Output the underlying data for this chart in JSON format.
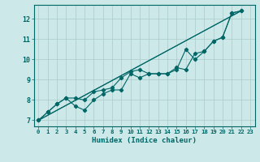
{
  "xlabel": "Humidex (Indice chaleur)",
  "background_color": "#cce8e8",
  "grid_color": "#aacccc",
  "line_color": "#006666",
  "xlim": [
    -0.5,
    23.5
  ],
  "ylim": [
    6.7,
    12.7
  ],
  "yticks": [
    7,
    8,
    9,
    10,
    11,
    12
  ],
  "xticks": [
    0,
    1,
    2,
    3,
    4,
    5,
    6,
    7,
    8,
    9,
    10,
    11,
    12,
    13,
    14,
    15,
    16,
    17,
    18,
    19,
    20,
    21,
    22,
    23
  ],
  "straight1": {
    "x": [
      0,
      22
    ],
    "y": [
      7.0,
      12.4
    ]
  },
  "straight2": {
    "x": [
      0,
      22
    ],
    "y": [
      7.0,
      12.4
    ]
  },
  "line1_x": [
    0,
    1,
    2,
    3,
    4,
    5,
    6,
    7,
    8,
    9,
    10,
    11,
    12,
    13,
    14,
    15,
    16,
    17,
    18,
    19,
    20,
    21,
    22
  ],
  "line1_y": [
    7.0,
    7.4,
    7.8,
    8.1,
    7.7,
    7.5,
    8.0,
    8.3,
    8.5,
    8.5,
    9.3,
    9.1,
    9.3,
    9.3,
    9.3,
    9.5,
    10.5,
    10.0,
    10.4,
    10.9,
    11.1,
    12.3,
    12.4
  ],
  "line2_x": [
    0,
    1,
    2,
    3,
    4,
    5,
    6,
    7,
    8,
    9,
    10,
    11,
    12,
    13,
    14,
    15,
    16,
    17,
    18,
    19,
    20,
    21,
    22
  ],
  "line2_y": [
    7.0,
    7.4,
    7.8,
    8.1,
    8.1,
    8.0,
    8.4,
    8.5,
    8.6,
    9.1,
    9.4,
    9.5,
    9.3,
    9.3,
    9.3,
    9.6,
    9.5,
    10.3,
    10.4,
    10.9,
    11.1,
    12.3,
    12.4
  ]
}
